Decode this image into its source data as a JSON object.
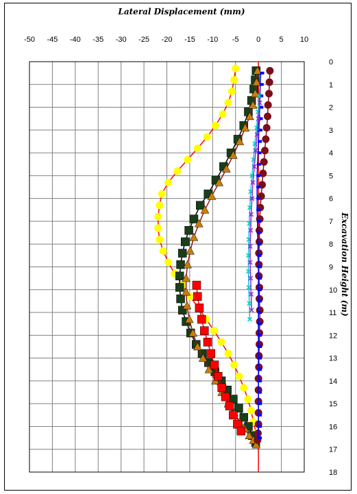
{
  "chart_data": {
    "type": "line",
    "title": "Lateral Displacement (mm)",
    "xlabel": "Lateral Displacement (mm)",
    "ylabel": "Excavation Height (m)",
    "xlim": [
      -50,
      10
    ],
    "ylim": [
      0,
      18
    ],
    "x_ticks": [
      -50,
      -45,
      -40,
      -35,
      -30,
      -25,
      -20,
      -15,
      -10,
      -5,
      0,
      5,
      10
    ],
    "y_ticks": [
      0,
      1,
      2,
      3,
      4,
      5,
      6,
      7,
      8,
      9,
      10,
      11,
      12,
      13,
      14,
      15,
      16,
      17,
      18
    ],
    "grid": true,
    "x_axis_position": "top",
    "y_axis_position": "right",
    "y_inverted": true,
    "reference_line": {
      "x": 0,
      "color": "#ff0000"
    },
    "series": [
      {
        "marker": "circle",
        "color": "#ffff00",
        "line_color": "#ff0000",
        "x": [
          -5,
          -5.3,
          -5.8,
          -6.6,
          -7.8,
          -9.4,
          -11.2,
          -13.3,
          -15.5,
          -17.7,
          -19.7,
          -21.1,
          -21.6,
          -21.9,
          -21.9,
          -21.6,
          -20.8,
          -19.7,
          -18.3,
          -16.6,
          -14.9,
          -13.1,
          -11.4,
          -9.7,
          -8.1,
          -6.6,
          -5.3,
          -4.2,
          -3.2,
          -2.3,
          -1.6,
          -1.1,
          -0.5
        ],
        "y": [
          0.3,
          0.8,
          1.3,
          1.8,
          2.3,
          2.8,
          3.3,
          3.8,
          4.3,
          4.8,
          5.3,
          5.8,
          6.3,
          6.8,
          7.3,
          7.8,
          8.3,
          8.8,
          9.3,
          9.8,
          10.3,
          10.8,
          11.3,
          11.8,
          12.3,
          12.8,
          13.3,
          13.8,
          14.3,
          14.8,
          15.3,
          15.8,
          16.3
        ]
      },
      {
        "marker": "square",
        "color": "#1a3d1a",
        "line_color": "#000000",
        "x": [
          -0.5,
          -0.7,
          -1.0,
          -1.5,
          -2.2,
          -3.2,
          -4.5,
          -6.0,
          -7.6,
          -9.3,
          -11.0,
          -12.7,
          -14.1,
          -15.2,
          -16.0,
          -16.6,
          -17.0,
          -17.2,
          -17.2,
          -17.0,
          -16.6,
          -15.8,
          -14.8,
          -13.6,
          -12.3,
          -10.9,
          -9.5,
          -8.1,
          -6.8,
          -5.5,
          -4.3,
          -3.2,
          -2.2,
          -1.3,
          -0.6
        ],
        "y": [
          0.4,
          0.8,
          1.2,
          1.7,
          2.2,
          2.8,
          3.4,
          4.0,
          4.6,
          5.2,
          5.8,
          6.3,
          6.9,
          7.4,
          7.9,
          8.4,
          8.9,
          9.4,
          9.9,
          10.4,
          10.9,
          11.4,
          11.9,
          12.4,
          12.8,
          13.2,
          13.6,
          14.0,
          14.4,
          14.8,
          15.2,
          15.6,
          16.0,
          16.4,
          16.7
        ]
      },
      {
        "marker": "triangle",
        "color": "#c87d0a",
        "line_color": "#8b1a1a",
        "x": [
          -0.2,
          -0.4,
          -0.7,
          -1.2,
          -1.9,
          -2.9,
          -4.1,
          -5.5,
          -7.0,
          -8.6,
          -10.2,
          -11.7,
          -13.0,
          -14.1,
          -14.9,
          -15.5,
          -15.8,
          -15.8,
          -15.6,
          -15.1,
          -14.3,
          -13.3,
          -12.1,
          -10.8,
          -9.4,
          -8.0,
          -6.6,
          -5.3,
          -4.1,
          -3.0,
          -2.0,
          -1.1,
          -0.5
        ],
        "y": [
          0.4,
          0.9,
          1.4,
          1.9,
          2.4,
          2.9,
          3.5,
          4.1,
          4.7,
          5.3,
          5.9,
          6.5,
          7.1,
          7.7,
          8.3,
          8.9,
          9.5,
          10.1,
          10.7,
          11.3,
          11.9,
          12.5,
          13.0,
          13.5,
          14.0,
          14.5,
          15.0,
          15.4,
          15.8,
          16.1,
          16.4,
          16.6,
          16.8
        ]
      },
      {
        "marker": "square",
        "color": "#ff0000",
        "line_color": "#ff0000",
        "x": [
          -13.5,
          -13.3,
          -12.9,
          -12.4,
          -11.8,
          -11.1,
          -10.4,
          -9.6,
          -8.8,
          -8.0,
          -7.2,
          -6.3,
          -5.5,
          -4.6,
          -3.8
        ],
        "y": [
          9.8,
          10.3,
          10.8,
          11.3,
          11.8,
          12.3,
          12.8,
          13.3,
          13.8,
          14.3,
          14.7,
          15.1,
          15.5,
          15.9,
          16.2
        ]
      },
      {
        "marker": "circle",
        "color": "#7a0f1a",
        "line_color": "#7a0f1a",
        "x": [
          2.5,
          2.4,
          2.3,
          2.1,
          2.0,
          1.8,
          1.6,
          1.4,
          1.2,
          1.0,
          0.8,
          0.6,
          0.4,
          0.3,
          0.2,
          0.2,
          0.1,
          0.1,
          0.1,
          0.2,
          0.2,
          0.3,
          0.3,
          0.2,
          0.2,
          0.1,
          0.1,
          0.0,
          0.0,
          0.0,
          0.0,
          0.0,
          -0.1,
          -0.2
        ],
        "y": [
          0.4,
          0.9,
          1.4,
          1.9,
          2.4,
          2.9,
          3.4,
          3.9,
          4.4,
          4.9,
          5.4,
          5.9,
          6.4,
          6.9,
          7.4,
          7.9,
          8.4,
          8.9,
          9.4,
          9.9,
          10.4,
          10.9,
          11.4,
          11.9,
          12.4,
          12.9,
          13.4,
          13.9,
          14.4,
          14.9,
          15.4,
          15.9,
          16.3,
          16.6
        ]
      },
      {
        "marker": "dash",
        "color": "#0000ff",
        "line_color": "#0000ff",
        "x": [
          0.5,
          0.4,
          0.3,
          0.3,
          0.2,
          0.1,
          0.0,
          -0.1,
          -0.2,
          -0.3,
          -0.3,
          -0.3,
          -0.3,
          -0.2,
          -0.2,
          -0.1,
          -0.1,
          0.0,
          0.0,
          0.0,
          0.0,
          0.0,
          0.0,
          0.0,
          0.0,
          0.0,
          0.0,
          0.0,
          0.0,
          0.0,
          0.0,
          0.0,
          0.0
        ],
        "y": [
          0.5,
          1.0,
          1.5,
          2.0,
          2.5,
          3.0,
          3.5,
          4.0,
          4.5,
          5.0,
          5.5,
          6.0,
          6.5,
          7.0,
          7.5,
          8.0,
          8.5,
          9.0,
          9.5,
          10.0,
          10.5,
          11.0,
          11.5,
          12.0,
          12.5,
          13.0,
          13.5,
          14.0,
          14.5,
          15.0,
          15.5,
          16.0,
          16.5
        ]
      },
      {
        "marker": "cross",
        "color": "#00cccc",
        "line_color": "#00cccc",
        "x": [
          0.2,
          -0.1,
          -0.4,
          -0.8,
          -1.1,
          -1.4,
          -1.7,
          -1.9,
          -2.0,
          -2.1,
          -2.2,
          -2.2,
          -2.1,
          -2.0,
          -1.9
        ],
        "y": [
          1.5,
          2.2,
          2.9,
          3.6,
          4.3,
          5.0,
          5.7,
          6.4,
          7.1,
          7.8,
          8.5,
          9.2,
          9.9,
          10.6,
          11.3
        ]
      },
      {
        "marker": "cross",
        "color": "#8a2be2",
        "line_color": "#8a2be2",
        "x": [
          0.3,
          0.0,
          -0.3,
          -0.6,
          -0.9,
          -1.2,
          -1.4,
          -1.6,
          -1.7,
          -1.8,
          -1.8,
          -1.7,
          -1.6,
          -1.5
        ],
        "y": [
          1.8,
          2.5,
          3.2,
          3.9,
          4.6,
          5.3,
          6.0,
          6.7,
          7.4,
          8.1,
          8.8,
          9.5,
          10.2,
          10.9
        ]
      }
    ]
  }
}
